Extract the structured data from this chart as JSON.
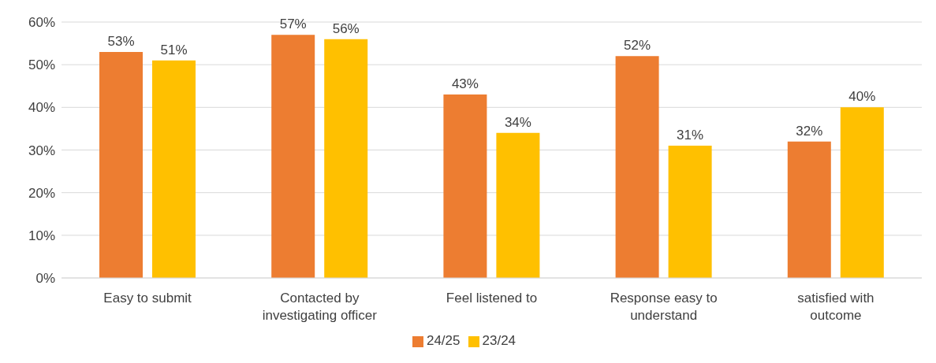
{
  "chart_data": {
    "type": "bar",
    "categories": [
      "Easy to submit",
      "Contacted by investigating officer",
      "Feel listened to",
      "Response easy to understand",
      "satisfied with outcome"
    ],
    "series": [
      {
        "name": "24/25",
        "color": "#ed7d31",
        "values": [
          53,
          57,
          43,
          52,
          32
        ],
        "value_labels": [
          "53%",
          "57%",
          "43%",
          "52%",
          "32%"
        ]
      },
      {
        "name": "23/24",
        "color": "#ffc000",
        "values": [
          51,
          56,
          34,
          31,
          40
        ],
        "value_labels": [
          "51%",
          "56%",
          "34%",
          "31%",
          "40%"
        ]
      }
    ],
    "ylim": [
      0,
      60
    ],
    "yticks": [
      {
        "value": 0,
        "label": "0%"
      },
      {
        "value": 10,
        "label": "10%"
      },
      {
        "value": 20,
        "label": "20%"
      },
      {
        "value": 30,
        "label": "30%"
      },
      {
        "value": 40,
        "label": "40%"
      },
      {
        "value": 50,
        "label": "50%"
      },
      {
        "value": 60,
        "label": "60%"
      }
    ],
    "grid": "y",
    "legend": "bottom"
  }
}
